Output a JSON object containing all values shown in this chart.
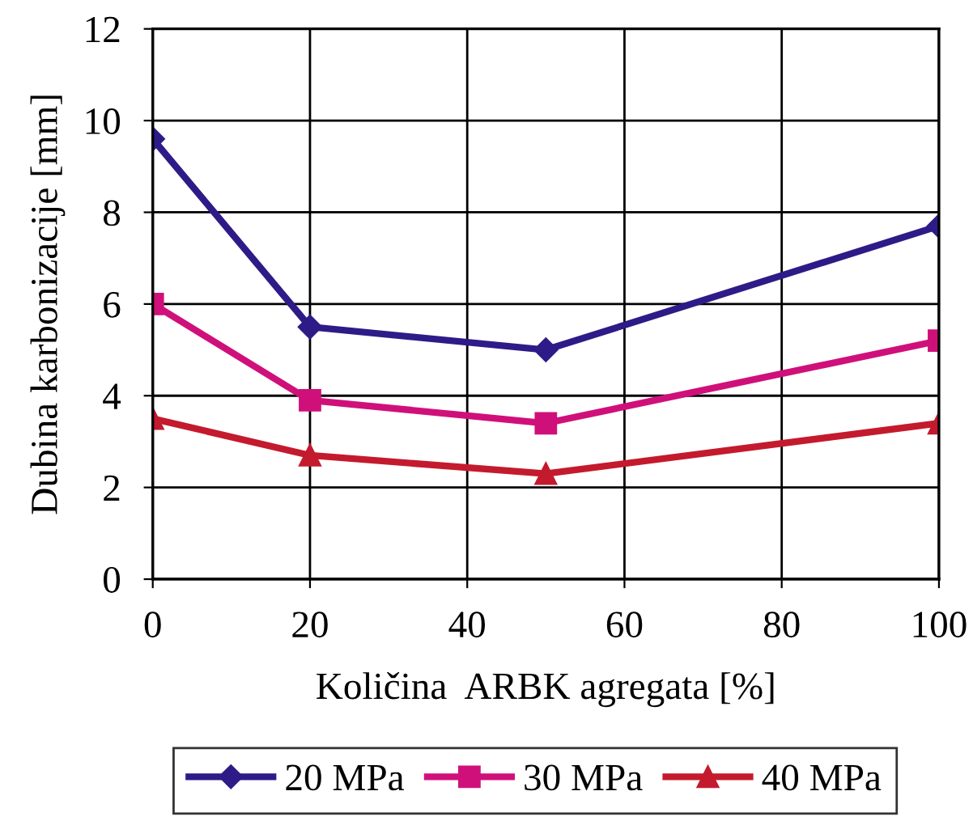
{
  "chart_data": {
    "type": "line",
    "xlabel": "Količina  ARBK agregata [%]",
    "ylabel": "Dubina karbonizacije [mm]",
    "x": [
      0,
      20,
      50,
      100
    ],
    "series": [
      {
        "name": "20 MPa",
        "color": "#2e1b87",
        "marker": "diamond",
        "values": [
          9.6,
          5.5,
          5.0,
          7.7
        ]
      },
      {
        "name": "30 MPa",
        "color": "#d0107a",
        "marker": "square",
        "values": [
          6.0,
          3.9,
          3.4,
          5.2
        ]
      },
      {
        "name": "40 MPa",
        "color": "#c41a2e",
        "marker": "triangle",
        "values": [
          3.5,
          2.7,
          2.3,
          3.4
        ]
      }
    ],
    "xlim": [
      0,
      100
    ],
    "xticks": [
      0,
      20,
      40,
      60,
      80,
      100
    ],
    "ylim": [
      0,
      12
    ],
    "yticks": [
      0,
      2,
      4,
      6,
      8,
      10,
      12
    ],
    "grid": true,
    "legend": "bottom",
    "line_style": "solid"
  }
}
